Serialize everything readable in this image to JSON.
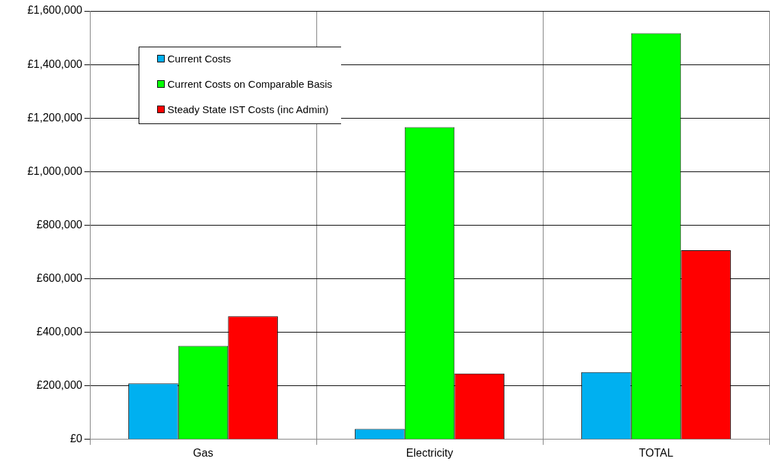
{
  "chart_data": {
    "type": "bar",
    "categories": [
      "Gas",
      "Electricity",
      "TOTAL"
    ],
    "series": [
      {
        "name": "Current Costs",
        "color": "#00b0f0",
        "values": [
          209000,
          39000,
          251000
        ]
      },
      {
        "name": "Current Costs on Comparable Basis",
        "color": "#00ff00",
        "values": [
          349000,
          1166000,
          1517000
        ]
      },
      {
        "name": "Steady State IST Costs (inc Admin)",
        "color": "#ff0000",
        "values": [
          460000,
          246000,
          706000
        ]
      }
    ],
    "ylim": [
      0,
      1600000
    ],
    "yticks": [
      {
        "value": 0,
        "label": "£0"
      },
      {
        "value": 200000,
        "label": "£200,000"
      },
      {
        "value": 400000,
        "label": "£400,000"
      },
      {
        "value": 600000,
        "label": "£600,000"
      },
      {
        "value": 800000,
        "label": "£800,000"
      },
      {
        "value": 1000000,
        "label": "£1,000,000"
      },
      {
        "value": 1200000,
        "label": "£1,200,000"
      },
      {
        "value": 1400000,
        "label": "£1,400,000"
      },
      {
        "value": 1600000,
        "label": "£1,600,000"
      }
    ],
    "grid": true,
    "legend": "top left"
  }
}
